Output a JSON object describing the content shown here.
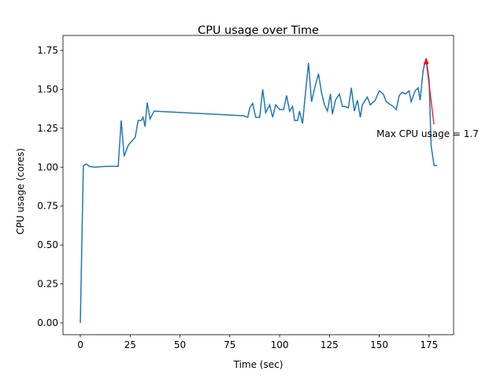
{
  "chart_data": {
    "type": "line",
    "title": "CPU usage over Time",
    "x_label": "Time (sec)",
    "y_label": "CPU usage (cores)",
    "x": [
      0,
      1.5,
      3,
      4.5,
      7,
      13,
      19,
      20.5,
      22,
      24,
      26,
      27.5,
      29,
      30.5,
      31.5,
      32.5,
      33.5,
      35,
      37,
      82,
      84,
      85,
      86.5,
      88,
      90,
      91.5,
      93,
      95,
      96.5,
      98,
      100,
      102,
      103.5,
      105,
      106.5,
      107.5,
      109,
      110,
      111.5,
      113,
      114.5,
      116,
      118,
      119.5,
      121,
      122.5,
      124,
      125.5,
      126.5,
      128,
      130,
      131.5,
      133,
      134.5,
      136,
      137.5,
      139,
      140.5,
      141.5,
      144,
      145.5,
      148,
      150,
      152,
      153.5,
      157,
      158.5,
      160,
      161.5,
      163,
      165,
      166,
      168,
      169.5,
      170.5,
      172,
      173.5,
      175,
      176,
      177.5,
      179
    ],
    "series": [
      {
        "name": "CPU usage",
        "color": "#1f77b4",
        "values": [
          0.0,
          1.01,
          1.02,
          1.005,
          1.0,
          1.005,
          1.005,
          1.3,
          1.07,
          1.14,
          1.17,
          1.19,
          1.3,
          1.3,
          1.32,
          1.26,
          1.415,
          1.31,
          1.36,
          1.33,
          1.32,
          1.38,
          1.41,
          1.32,
          1.32,
          1.5,
          1.35,
          1.4,
          1.32,
          1.4,
          1.37,
          1.37,
          1.46,
          1.36,
          1.39,
          1.3,
          1.3,
          1.36,
          1.28,
          1.48,
          1.67,
          1.42,
          1.53,
          1.6,
          1.48,
          1.4,
          1.36,
          1.47,
          1.34,
          1.43,
          1.47,
          1.39,
          1.39,
          1.38,
          1.51,
          1.36,
          1.43,
          1.32,
          1.4,
          1.45,
          1.4,
          1.43,
          1.49,
          1.47,
          1.42,
          1.39,
          1.37,
          1.46,
          1.48,
          1.47,
          1.49,
          1.42,
          1.49,
          1.51,
          1.43,
          1.62,
          1.7,
          1.56,
          1.14,
          1.01,
          1.01
        ]
      }
    ],
    "xlim": [
      -8.7,
      187.3
    ],
    "ylim": [
      -0.076,
      1.846
    ],
    "xticks": [
      0,
      25,
      50,
      75,
      100,
      125,
      150,
      175
    ],
    "yticks": [
      {
        "value": 0,
        "label": "0.00"
      },
      {
        "value": 0.25,
        "label": "0.25"
      },
      {
        "value": 0.5,
        "label": "0.50"
      },
      {
        "value": 0.75,
        "label": "0.75"
      },
      {
        "value": 1,
        "label": "1.00"
      },
      {
        "value": 1.25,
        "label": "1.25"
      },
      {
        "value": 1.5,
        "label": "1.50"
      },
      {
        "value": 1.75,
        "label": "1.75"
      }
    ],
    "annotation": {
      "text": "Max CPU usage = 1.7",
      "x": 173.5,
      "y": 1.7,
      "color": "#ff0000"
    }
  }
}
